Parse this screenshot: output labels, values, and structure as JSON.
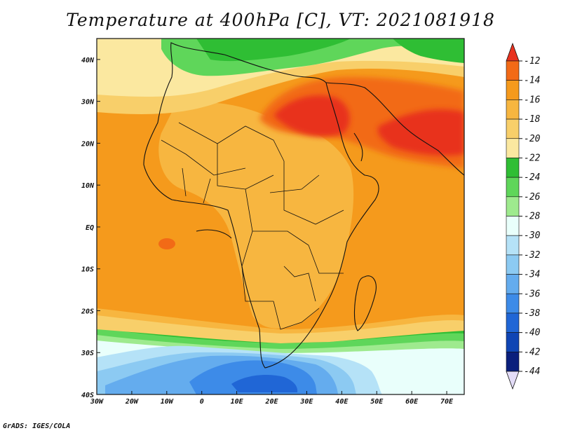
{
  "title": "Temperature at 400hPa [C], VT: 2021081918",
  "credit": "GrADS: IGES/COLA",
  "map": {
    "lon_ticks": [
      "30W",
      "20W",
      "10W",
      "0",
      "10E",
      "20E",
      "30E",
      "40E",
      "50E",
      "60E",
      "70E"
    ],
    "lat_ticks": [
      "40N",
      "30N",
      "20N",
      "10N",
      "EQ",
      "10S",
      "20S",
      "30S",
      "40S"
    ],
    "lon_range": [
      -30,
      75
    ],
    "lat_range": [
      -40,
      45
    ]
  },
  "colorbar": {
    "levels": [
      "-12",
      "-14",
      "-16",
      "-18",
      "-20",
      "-22",
      "-24",
      "-26",
      "-28",
      "-30",
      "-32",
      "-34",
      "-36",
      "-38",
      "-40",
      "-42",
      "-44"
    ],
    "colors": [
      "#e8321f",
      "#f26a16",
      "#f59a1c",
      "#f7b640",
      "#f8cf6a",
      "#fbe8a0",
      "#2fbe34",
      "#5fd65a",
      "#9eea8e",
      "#e9fffb",
      "#b5e2f7",
      "#8ccaf2",
      "#64acee",
      "#3d8be8",
      "#2066d6",
      "#0f45b4",
      "#0a1f7c",
      "#e3dcf7"
    ]
  }
}
